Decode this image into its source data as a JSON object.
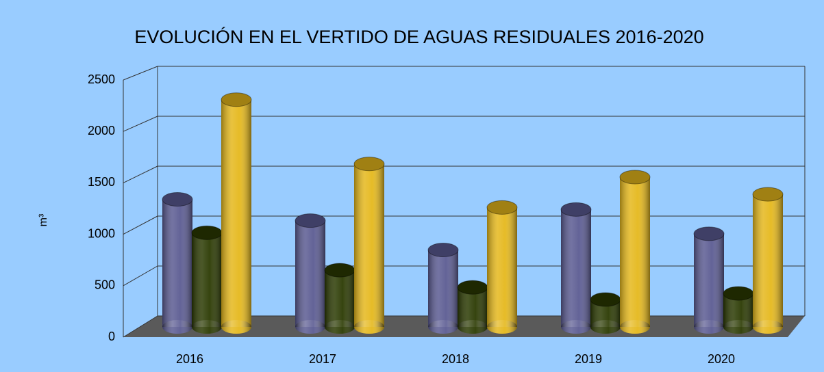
{
  "chart_data": {
    "type": "bar3d",
    "title": "EVOLUCIÓN EN EL VERTIDO DE AGUAS RESIDUALES 2016-2020",
    "y_label": "m³",
    "categories": [
      "2016",
      "2017",
      "2018",
      "2019",
      "2020"
    ],
    "series": [
      {
        "color": "#5b5b92",
        "values": [
          1260,
          1050,
          760,
          1160,
          920
        ]
      },
      {
        "color": "#2b3a02",
        "values": [
          930,
          560,
          390,
          270,
          330
        ]
      },
      {
        "color": "#e5b81c",
        "values": [
          2245,
          1610,
          1180,
          1480,
          1310
        ]
      }
    ],
    "ylim": [
      0,
      2500
    ],
    "yticks": [
      0,
      500,
      1000,
      1500,
      2000,
      2500
    ],
    "grid": true
  }
}
